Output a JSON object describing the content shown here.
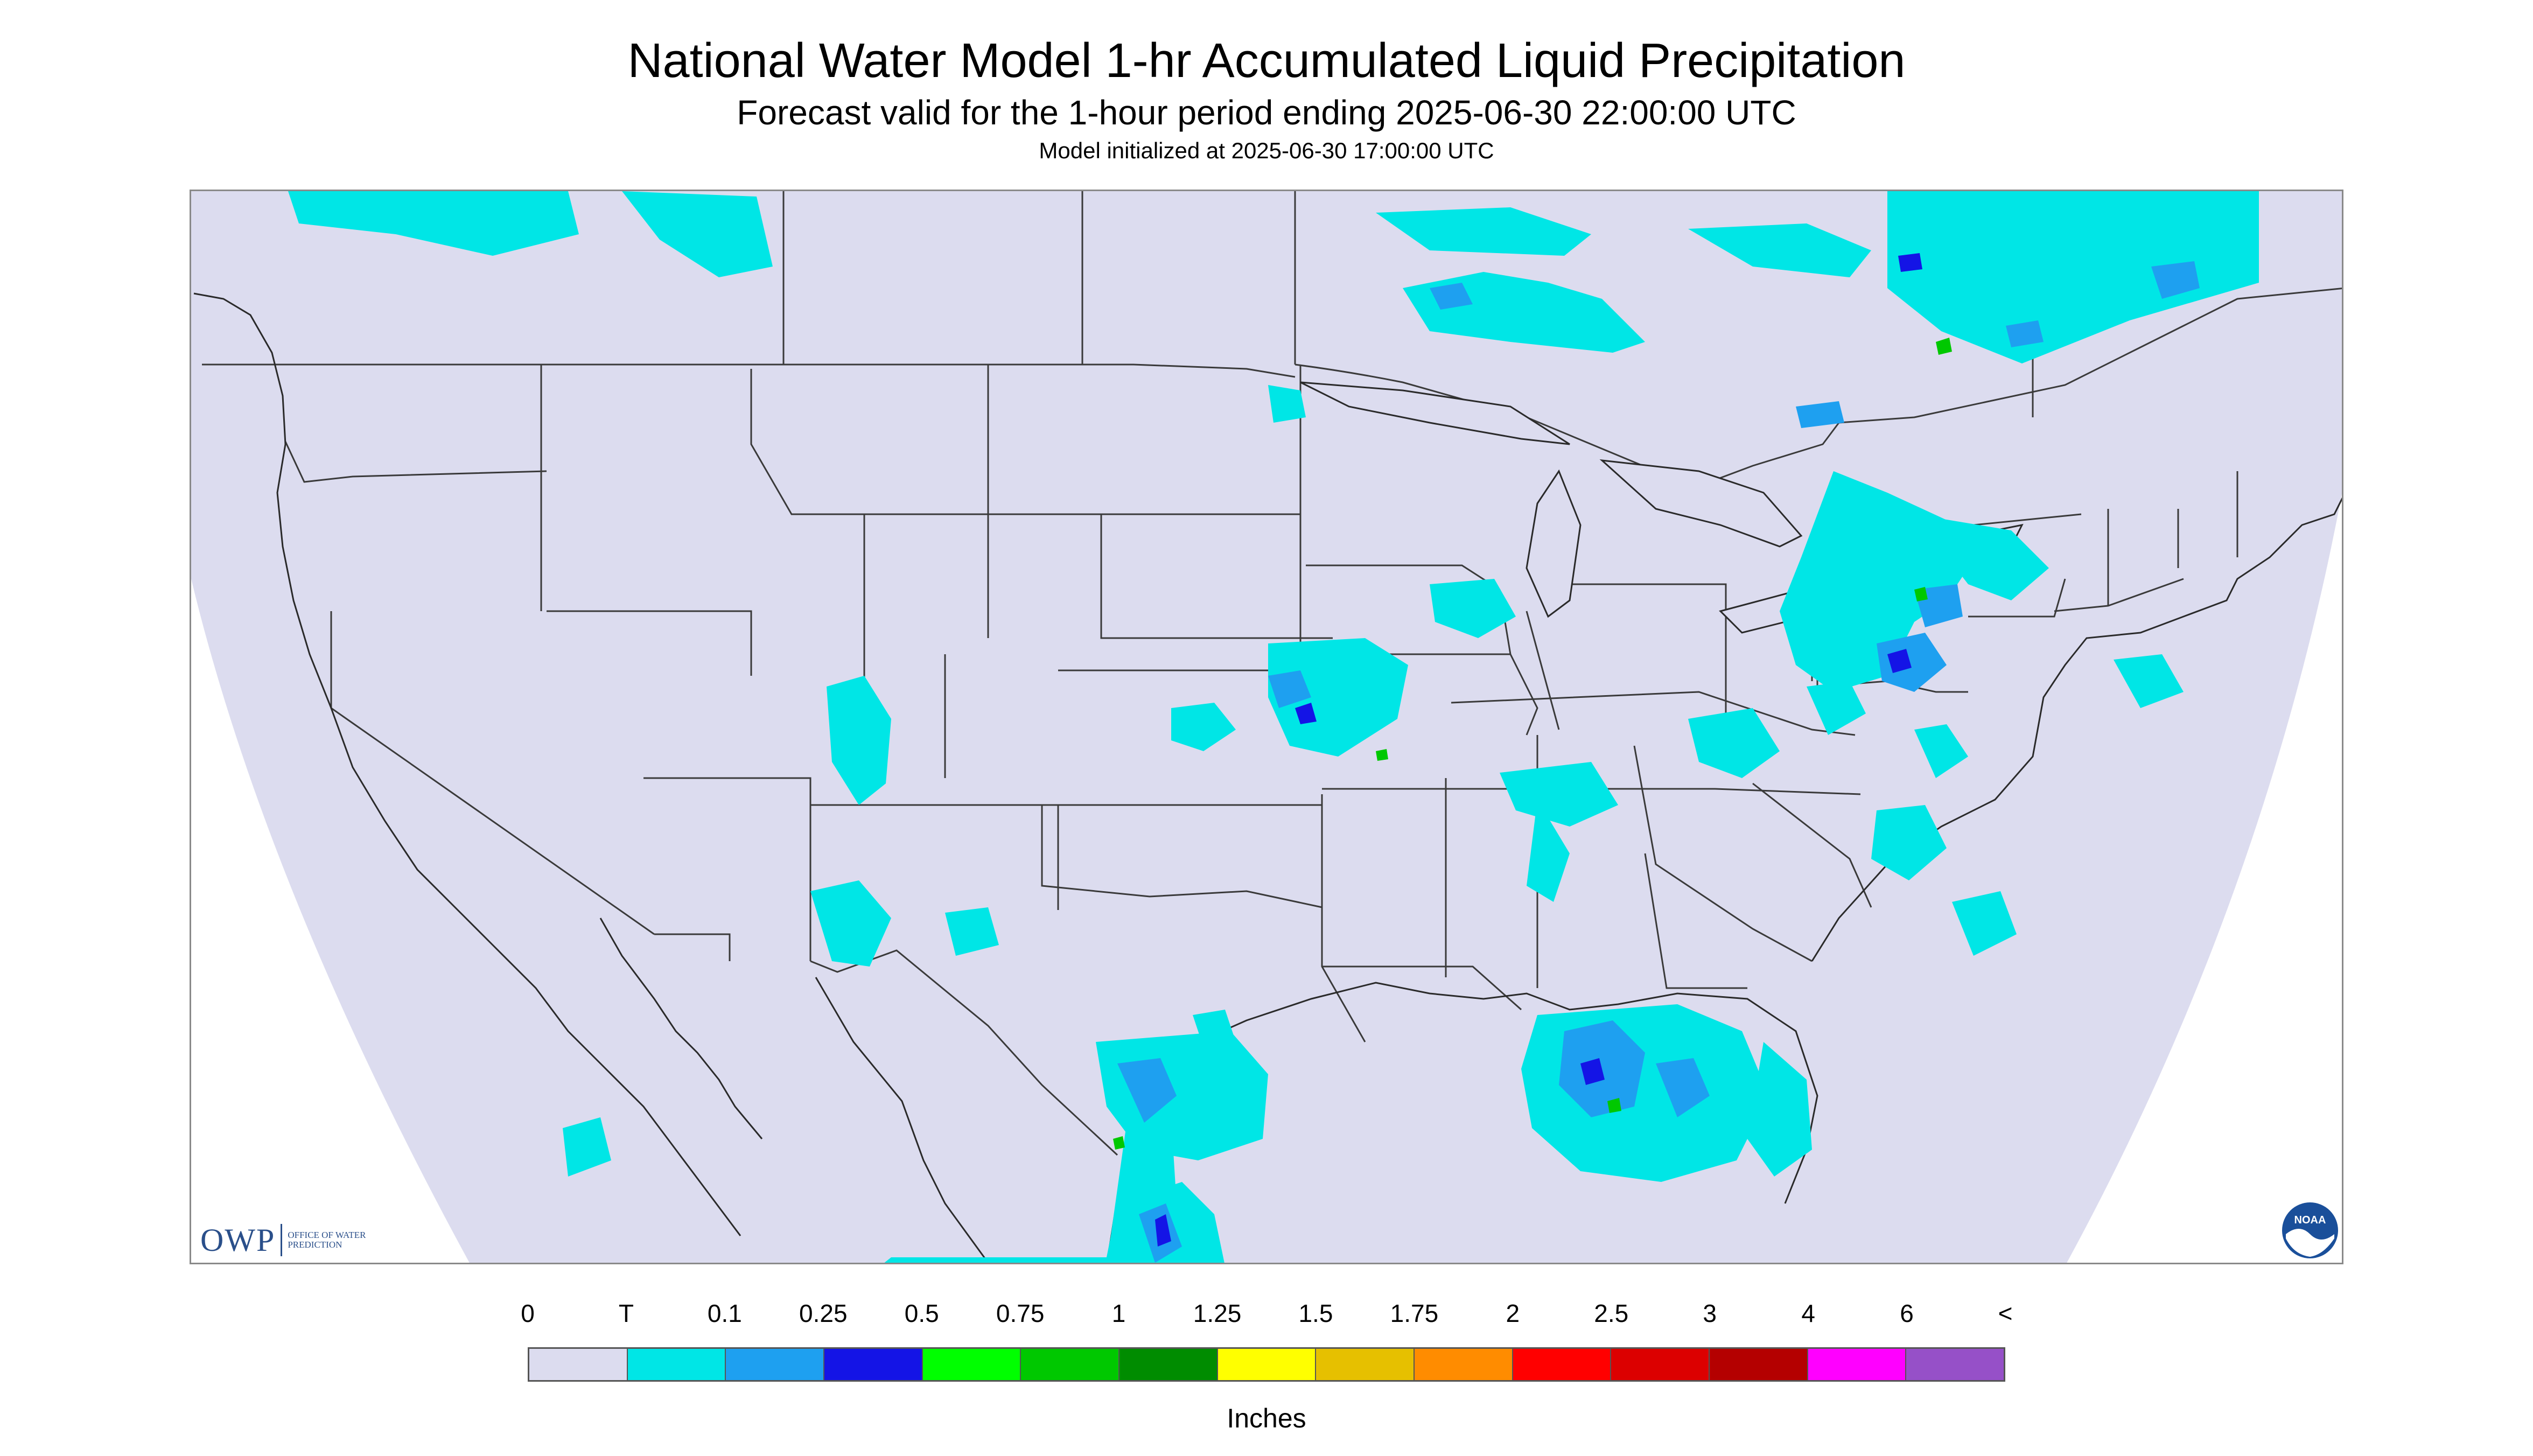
{
  "header": {
    "title": "National Water Model 1-hr Accumulated Liquid Precipitation",
    "subtitle": "Forecast valid for the 1-hour period ending 2025-06-30 22:00:00 UTC",
    "init": "Model initialized at 2025-06-30 17:00:00 UTC"
  },
  "logos": {
    "owp_letters": "OWP",
    "owp_small": "OFFICE OF WATER PREDICTION",
    "noaa_text": "NOAA"
  },
  "colors": {
    "map_background": "#dcdcef",
    "border_lines": "#3a3a3a",
    "precip_trace": "#00e6e6",
    "precip_light": "#1ea0f0",
    "precip_mod": "#1414e6",
    "precip_heavy": "#00c800"
  },
  "legend": {
    "tick_labels": [
      "0",
      "T",
      "0.1",
      "0.25",
      "0.5",
      "0.75",
      "1",
      "1.25",
      "1.5",
      "1.75",
      "2",
      "2.5",
      "3",
      "4",
      "6",
      "<"
    ],
    "swatch_colors": [
      "#dcdcef",
      "#00e6e6",
      "#1ea0f0",
      "#1414e6",
      "#00ff00",
      "#00c800",
      "#008c00",
      "#ffff00",
      "#e6c000",
      "#ff8c00",
      "#ff0000",
      "#dc0000",
      "#b40000",
      "#ff00ff",
      "#9650c8"
    ],
    "units": "Inches"
  }
}
